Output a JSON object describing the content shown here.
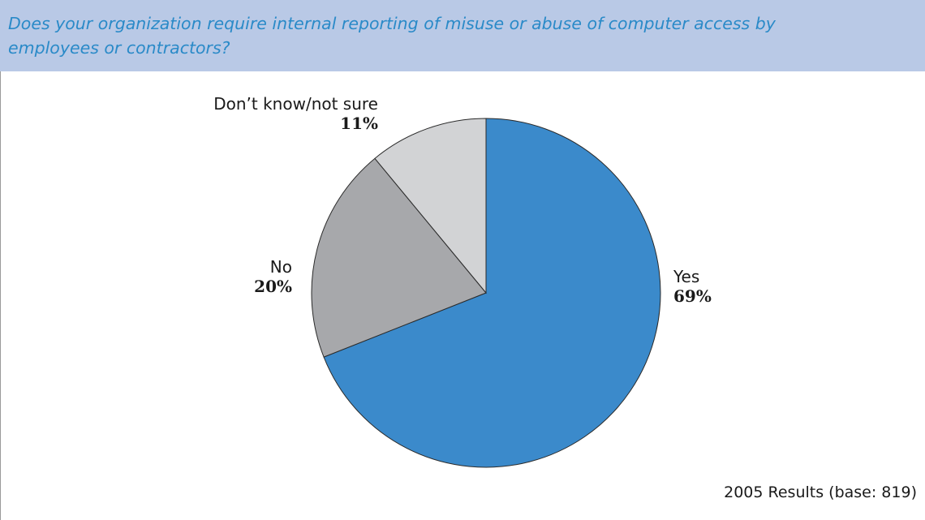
{
  "question": "Does your organization require internal reporting of misuse or abuse of computer access by employees or contractors?",
  "footnote": "2005 Results (base: 819)",
  "chart_data": {
    "type": "pie",
    "title": "",
    "slices": [
      {
        "label": "Yes",
        "value": 69,
        "value_label": "69%",
        "color": "#3b8acb"
      },
      {
        "label": "No",
        "value": 20,
        "value_label": "20%",
        "color": "#a7a8ab"
      },
      {
        "label": "Don’t know/not sure",
        "value": 11,
        "value_label": "11%",
        "color": "#d2d3d5"
      }
    ],
    "start_angle_deg": 0,
    "direction": "clockwise",
    "legend": "none"
  }
}
